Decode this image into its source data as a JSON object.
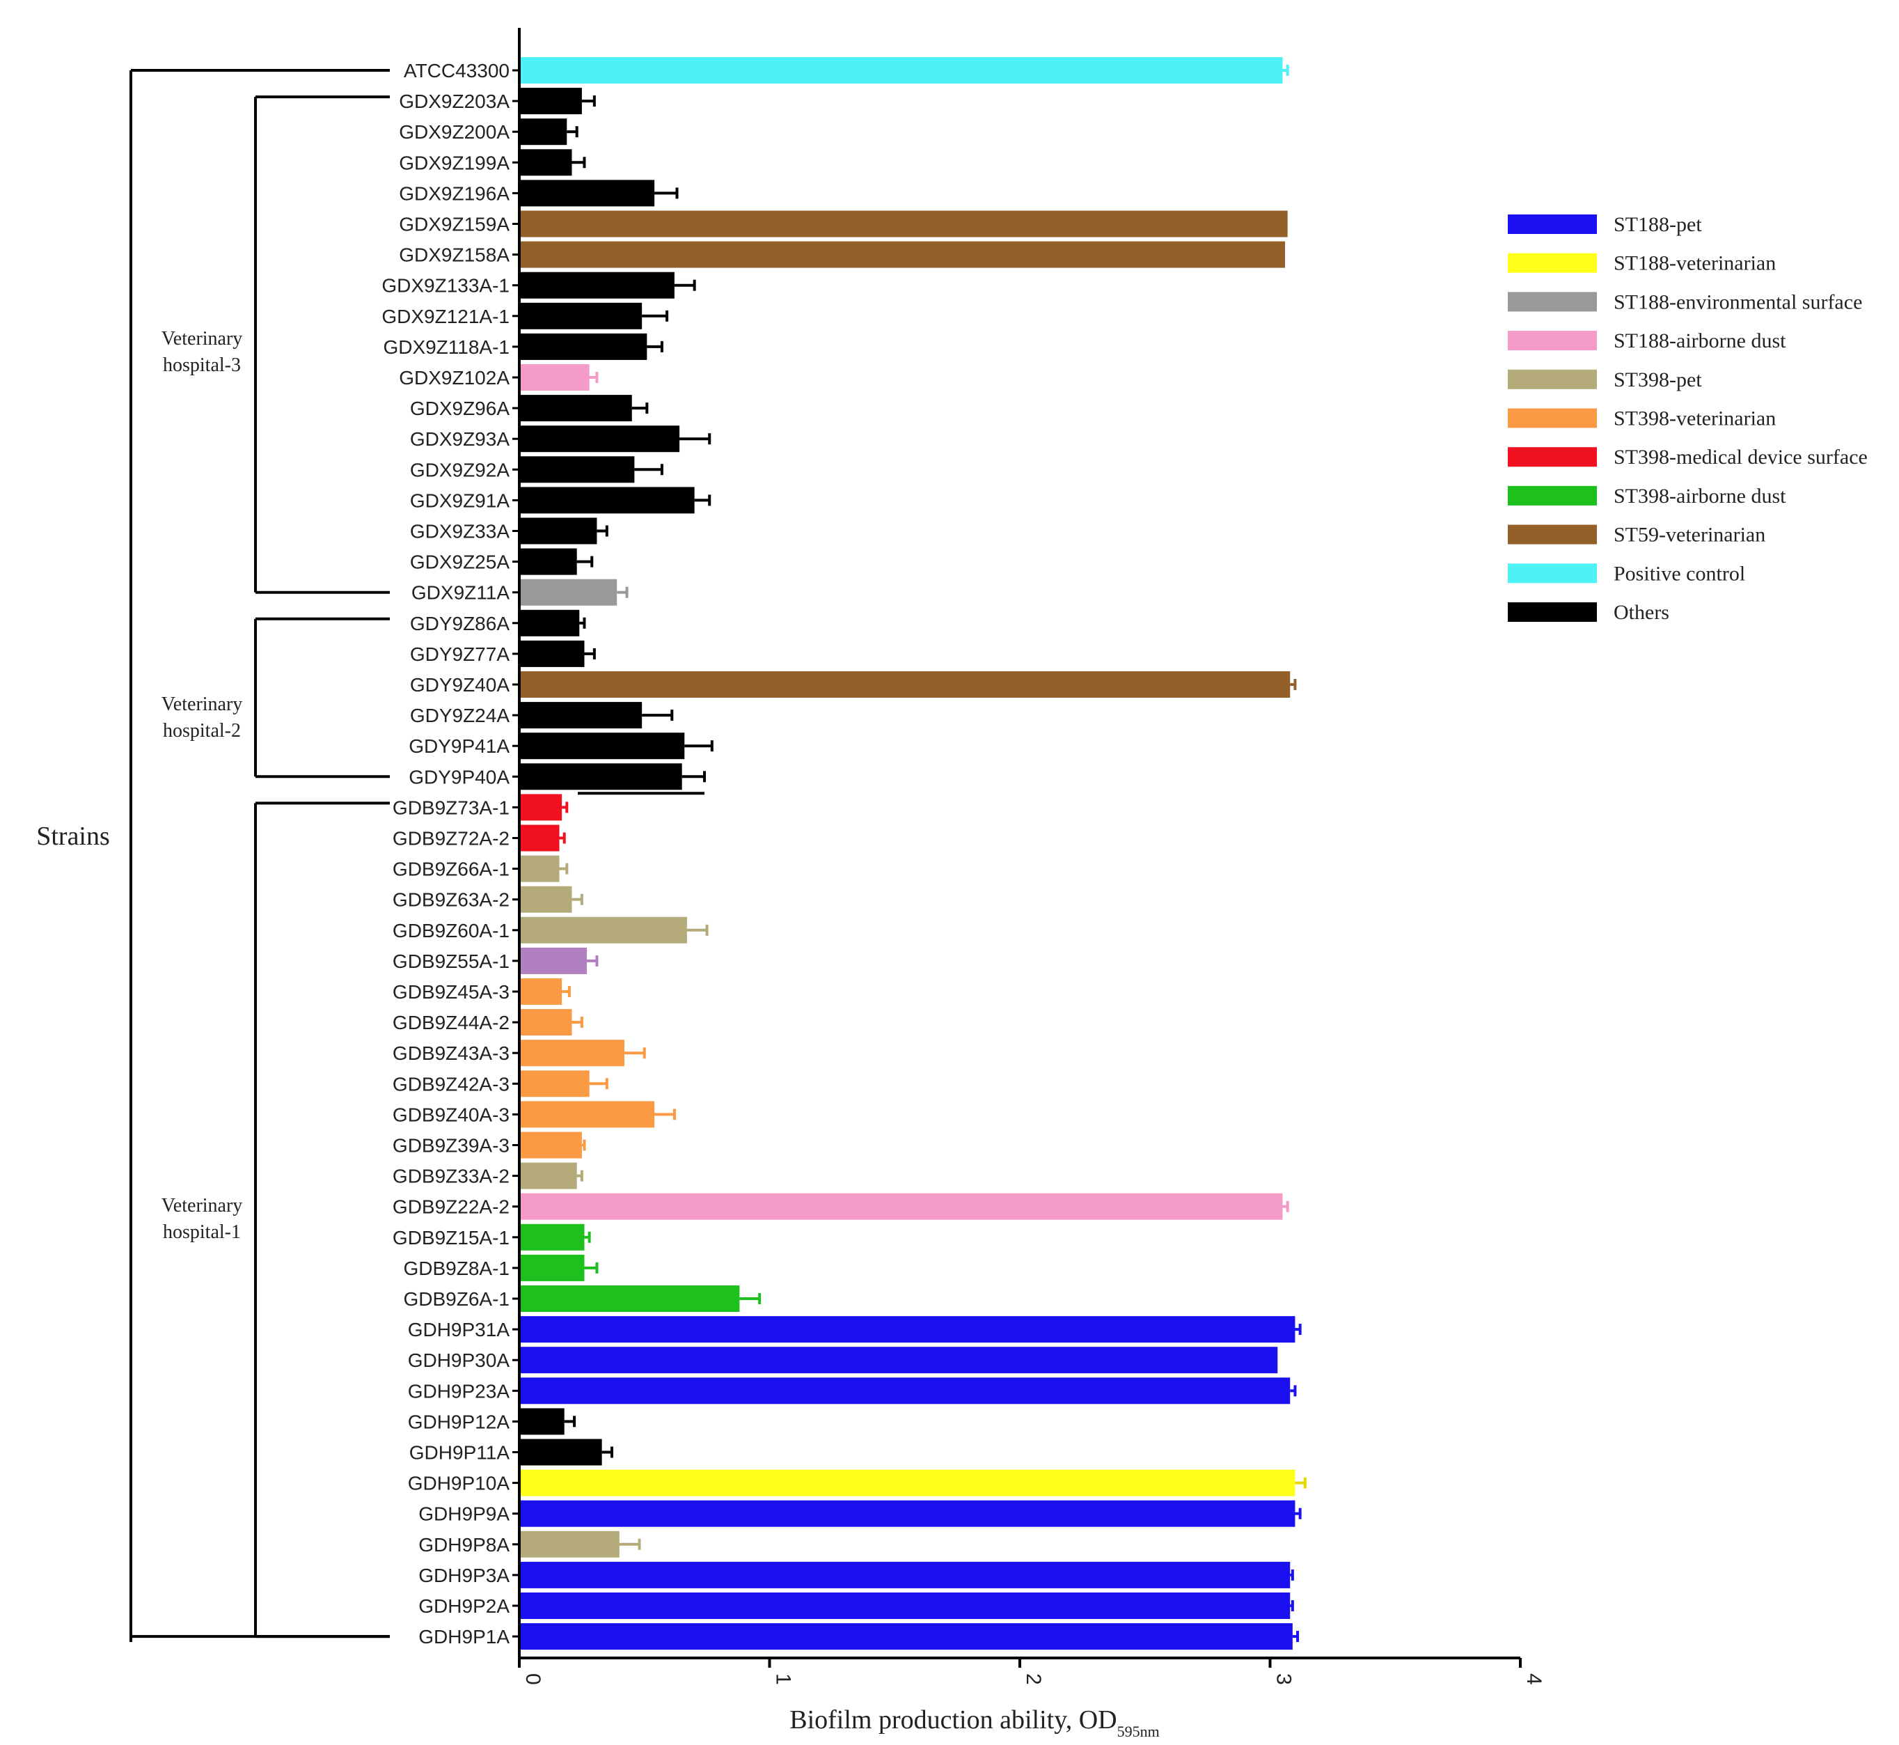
{
  "chart_data": {
    "type": "bar",
    "orientation": "horizontal",
    "title": "",
    "xlabel": "Biofilm production ability, OD",
    "xlabel_subscript": "595nm",
    "ylabel": "Strains",
    "xlim": [
      0,
      4
    ],
    "xticks": [
      0,
      1,
      2,
      3,
      4
    ],
    "xtick_labels": [
      "0",
      "1",
      "2",
      "3",
      "4"
    ],
    "groups": [
      {
        "label_lines": [
          "Veterinary",
          "hospital-3"
        ],
        "first": "GDX9Z203A",
        "last": "GDX9Z11A"
      },
      {
        "label_lines": [
          "Veterinary",
          "hospital-2"
        ],
        "first": "GDY9Z86A",
        "last": "GDY9P40A"
      },
      {
        "label_lines": [
          "Veterinary",
          "hospital-1"
        ],
        "first": "GDB9Z73A-1",
        "last": "GDH9P1A"
      }
    ],
    "legend": [
      {
        "label": "ST188-pet",
        "color": "#1a10f0"
      },
      {
        "label": "ST188-veterinarian",
        "color": "#ffff1a"
      },
      {
        "label": "ST188-environmental surface",
        "color": "#999999"
      },
      {
        "label": "ST188-airborne dust",
        "color": "#f49bc8"
      },
      {
        "label": "ST398-pet",
        "color": "#b5aa7a"
      },
      {
        "label": "ST398-veterinarian",
        "color": "#fb9a44"
      },
      {
        "label": "ST398-medical device surface",
        "color": "#f01020"
      },
      {
        "label": "ST398-airborne dust",
        "color": "#1ec01e"
      },
      {
        "label": "ST59-veterinarian",
        "color": "#93602a"
      },
      {
        "label": "Positive control",
        "color": "#4cf2f4"
      },
      {
        "label": "Others",
        "color": "#000000"
      }
    ],
    "bars": [
      {
        "label": "ATCC43300",
        "value": 3.05,
        "error": 0.02,
        "color": "#4cf2f4"
      },
      {
        "label": "GDX9Z203A",
        "value": 0.25,
        "error": 0.05,
        "color": "#000000"
      },
      {
        "label": "GDX9Z200A",
        "value": 0.19,
        "error": 0.04,
        "color": "#000000"
      },
      {
        "label": "GDX9Z199A",
        "value": 0.21,
        "error": 0.05,
        "color": "#000000"
      },
      {
        "label": "GDX9Z196A",
        "value": 0.54,
        "error": 0.09,
        "color": "#000000"
      },
      {
        "label": "GDX9Z159A",
        "value": 3.07,
        "error": 0.0,
        "color": "#93602a"
      },
      {
        "label": "GDX9Z158A",
        "value": 3.06,
        "error": 0.0,
        "color": "#93602a"
      },
      {
        "label": "GDX9Z133A-1",
        "value": 0.62,
        "error": 0.08,
        "color": "#000000"
      },
      {
        "label": "GDX9Z121A-1",
        "value": 0.49,
        "error": 0.1,
        "color": "#000000"
      },
      {
        "label": "GDX9Z118A-1",
        "value": 0.51,
        "error": 0.06,
        "color": "#000000"
      },
      {
        "label": "GDX9Z102A",
        "value": 0.28,
        "error": 0.03,
        "color": "#f49bc8"
      },
      {
        "label": "GDX9Z96A",
        "value": 0.45,
        "error": 0.06,
        "color": "#000000"
      },
      {
        "label": "GDX9Z93A",
        "value": 0.64,
        "error": 0.12,
        "color": "#000000"
      },
      {
        "label": "GDX9Z92A",
        "value": 0.46,
        "error": 0.11,
        "color": "#000000"
      },
      {
        "label": "GDX9Z91A",
        "value": 0.7,
        "error": 0.06,
        "color": "#000000"
      },
      {
        "label": "GDX9Z33A",
        "value": 0.31,
        "error": 0.04,
        "color": "#000000"
      },
      {
        "label": "GDX9Z25A",
        "value": 0.23,
        "error": 0.06,
        "color": "#000000"
      },
      {
        "label": "GDX9Z11A",
        "value": 0.39,
        "error": 0.04,
        "color": "#999999"
      },
      {
        "label": "GDY9Z86A",
        "value": 0.24,
        "error": 0.02,
        "color": "#000000"
      },
      {
        "label": "GDY9Z77A",
        "value": 0.26,
        "error": 0.04,
        "color": "#000000"
      },
      {
        "label": "GDY9Z40A",
        "value": 3.08,
        "error": 0.02,
        "color": "#93602a"
      },
      {
        "label": "GDY9Z24A",
        "value": 0.49,
        "error": 0.12,
        "color": "#000000"
      },
      {
        "label": "GDY9P41A",
        "value": 0.66,
        "error": 0.11,
        "color": "#000000"
      },
      {
        "label": "GDY9P40A",
        "value": 0.65,
        "error": 0.09,
        "color": "#000000"
      },
      {
        "label": "GDB9Z73A-1",
        "value": 0.17,
        "error": 0.02,
        "color": "#f01020"
      },
      {
        "label": "GDB9Z72A-2",
        "value": 0.16,
        "error": 0.02,
        "color": "#f01020"
      },
      {
        "label": "GDB9Z66A-1",
        "value": 0.16,
        "error": 0.03,
        "color": "#b5aa7a"
      },
      {
        "label": "GDB9Z63A-2",
        "value": 0.21,
        "error": 0.04,
        "color": "#b5aa7a"
      },
      {
        "label": "GDB9Z60A-1",
        "value": 0.67,
        "error": 0.08,
        "color": "#b5aa7a"
      },
      {
        "label": "GDB9Z55A-1",
        "value": 0.27,
        "error": 0.04,
        "color": "#b080c0"
      },
      {
        "label": "GDB9Z45A-3",
        "value": 0.17,
        "error": 0.03,
        "color": "#fb9a44"
      },
      {
        "label": "GDB9Z44A-2",
        "value": 0.21,
        "error": 0.04,
        "color": "#fb9a44"
      },
      {
        "label": "GDB9Z43A-3",
        "value": 0.42,
        "error": 0.08,
        "color": "#fb9a44"
      },
      {
        "label": "GDB9Z42A-3",
        "value": 0.28,
        "error": 0.07,
        "color": "#fb9a44"
      },
      {
        "label": "GDB9Z40A-3",
        "value": 0.54,
        "error": 0.08,
        "color": "#fb9a44"
      },
      {
        "label": "GDB9Z39A-3",
        "value": 0.25,
        "error": 0.01,
        "color": "#fb9a44"
      },
      {
        "label": "GDB9Z33A-2",
        "value": 0.23,
        "error": 0.02,
        "color": "#b5aa7a"
      },
      {
        "label": "GDB9Z22A-2",
        "value": 3.05,
        "error": 0.02,
        "color": "#f49bc8"
      },
      {
        "label": "GDB9Z15A-1",
        "value": 0.26,
        "error": 0.02,
        "color": "#1ec01e"
      },
      {
        "label": "GDB9Z8A-1",
        "value": 0.26,
        "error": 0.05,
        "color": "#1ec01e"
      },
      {
        "label": "GDB9Z6A-1",
        "value": 0.88,
        "error": 0.08,
        "color": "#1ec01e"
      },
      {
        "label": "GDH9P31A",
        "value": 3.1,
        "error": 0.02,
        "color": "#1a10f0"
      },
      {
        "label": "GDH9P30A",
        "value": 3.03,
        "error": 0.0,
        "color": "#1a10f0"
      },
      {
        "label": "GDH9P23A",
        "value": 3.08,
        "error": 0.02,
        "color": "#1a10f0"
      },
      {
        "label": "GDH9P12A",
        "value": 0.18,
        "error": 0.04,
        "color": "#000000"
      },
      {
        "label": "GDH9P11A",
        "value": 0.33,
        "error": 0.04,
        "color": "#000000"
      },
      {
        "label": "GDH9P10A",
        "value": 3.1,
        "error": 0.04,
        "color": "#ffff1a"
      },
      {
        "label": "GDH9P9A",
        "value": 3.1,
        "error": 0.02,
        "color": "#1a10f0"
      },
      {
        "label": "GDH9P8A",
        "value": 0.4,
        "error": 0.08,
        "color": "#b5aa7a"
      },
      {
        "label": "GDH9P3A",
        "value": 3.08,
        "error": 0.01,
        "color": "#1a10f0"
      },
      {
        "label": "GDH9P2A",
        "value": 3.08,
        "error": 0.01,
        "color": "#1a10f0"
      },
      {
        "label": "GDH9P1A",
        "value": 3.09,
        "error": 0.02,
        "color": "#1a10f0"
      }
    ]
  }
}
